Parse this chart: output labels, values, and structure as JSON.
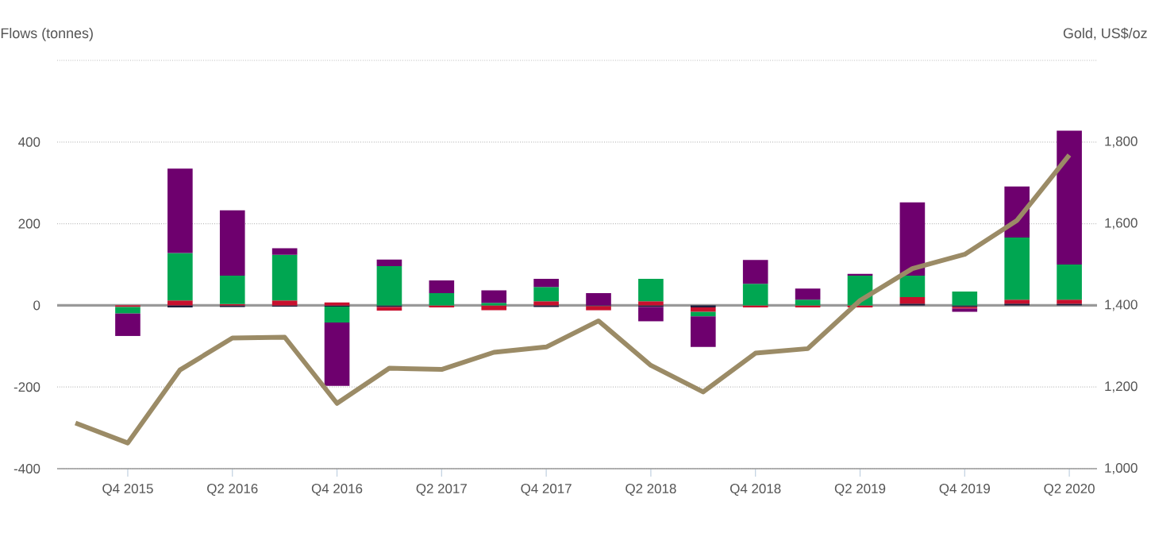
{
  "chart_data": {
    "type": "bar",
    "stacked": true,
    "ylabel": "Flows (tonnes)",
    "y2label": "Gold, US$/oz",
    "categories": [
      null,
      "Q4 2015",
      null,
      "Q2 2016",
      null,
      "Q4 2016",
      null,
      "Q2 2017",
      null,
      "Q4 2017",
      null,
      "Q2 2018",
      null,
      "Q4 2018",
      null,
      "Q2 2019",
      null,
      "Q4 2019",
      null,
      "Q2 2020"
    ],
    "ylim": [
      -400,
      600
    ],
    "yticks": [
      -400,
      -200,
      0,
      200,
      400,
      {
        "value": 600,
        "label": null
      }
    ],
    "y2lim": [
      1000,
      2000
    ],
    "y2ticks": [
      {
        "value": 1000,
        "label": "1,000"
      },
      {
        "value": 1200,
        "label": "1,200"
      },
      {
        "value": 1400,
        "label": "1,400"
      },
      {
        "value": 1600,
        "label": "1,600"
      },
      {
        "value": 1800,
        "label": "1,800"
      },
      {
        "value": 2000,
        "label": null
      }
    ],
    "grid": "y",
    "ref_lines": [
      {
        "axis": "y",
        "value": 0,
        "color": "#999999"
      }
    ],
    "series": [
      {
        "color": "#1c1a3a",
        "values": [
          null,
          null,
          -5,
          -4,
          -3,
          -3,
          -4,
          null,
          null,
          -4,
          -2,
          -4,
          -5,
          null,
          null,
          null,
          4,
          -4,
          4,
          4
        ]
      },
      {
        "color": "#c8102e",
        "values": [
          null,
          -4,
          12,
          3,
          12,
          7,
          -9,
          -5,
          -12,
          10,
          -10,
          10,
          -11,
          -5,
          -5,
          -5,
          16,
          -4,
          10,
          10
        ]
      },
      {
        "color": "#00a651",
        "values": [
          null,
          -16,
          116,
          70,
          112,
          -39,
          96,
          30,
          6,
          35,
          null,
          55,
          -11,
          53,
          14,
          73,
          53,
          34,
          152,
          86
        ]
      },
      {
        "color": "#6e006e",
        "values": [
          null,
          -55,
          207,
          160,
          16,
          -155,
          16,
          31,
          31,
          20,
          30,
          -35,
          -75,
          58,
          27,
          4,
          179,
          -8,
          125,
          328
        ]
      },
      {
        "type": "line",
        "axis": "y2",
        "color": "#9b8b66",
        "values": [
          1112,
          1063,
          1242,
          1320,
          1322,
          1160,
          1246,
          1243,
          1285,
          1298,
          1362,
          1253,
          1188,
          1283,
          1294,
          1412,
          1490,
          1525,
          1608,
          1768
        ]
      }
    ]
  }
}
